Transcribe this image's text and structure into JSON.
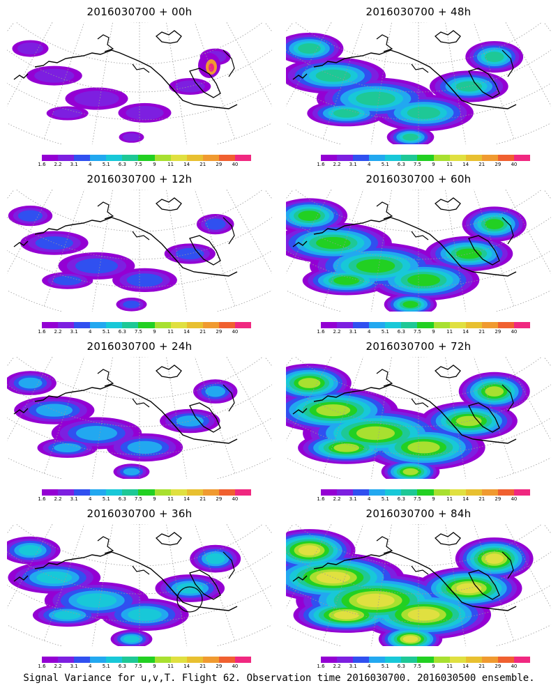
{
  "panels": [
    {
      "title": "2016030700 + 00h"
    },
    {
      "title": "2016030700 + 48h"
    },
    {
      "title": "2016030700 + 12h"
    },
    {
      "title": "2016030700 + 60h"
    },
    {
      "title": "2016030700 + 24h"
    },
    {
      "title": "2016030700 + 72h"
    },
    {
      "title": "2016030700 + 36h"
    },
    {
      "title": "2016030700 + 84h"
    }
  ],
  "colorbar": {
    "labels": [
      "1.6",
      "2.2",
      "3.1",
      "4",
      "5.1",
      "6.3",
      "7.5",
      "9",
      "11",
      "14",
      "21",
      "29",
      "40"
    ],
    "colors": [
      "#9400d3",
      "#7d1fe0",
      "#3050f0",
      "#22a8f0",
      "#18c8d8",
      "#1ec896",
      "#22d022",
      "#a8e030",
      "#e0e040",
      "#e8c030",
      "#f09a30",
      "#f06030",
      "#f02880"
    ]
  },
  "caption": "Signal Variance for u,v,T. Flight 62. Observation time 2016030700. 2016030500 ensemble."
}
